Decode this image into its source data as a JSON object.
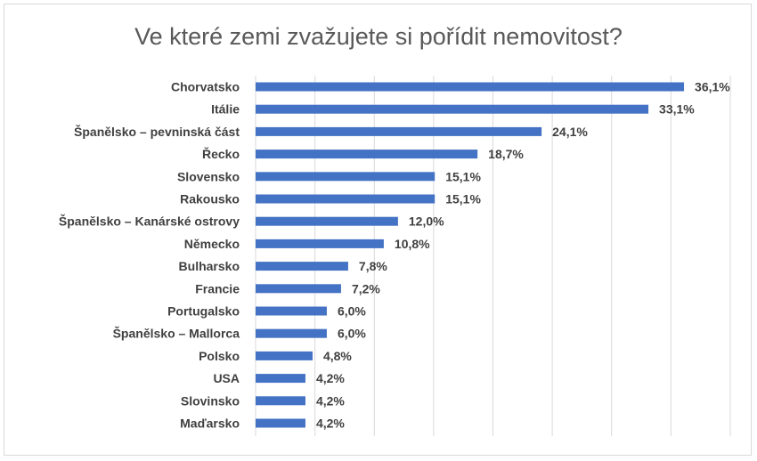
{
  "chart_data": {
    "type": "bar",
    "orientation": "horizontal",
    "title": "Ve které zemi zvažujete si pořídit nemovitost?",
    "categories": [
      "Chorvatsko",
      "Itálie",
      "Španělsko – pevninská část",
      "Řecko",
      "Slovensko",
      "Rakousko",
      "Španělsko – Kanárské ostrovy",
      "Německo",
      "Bulharsko",
      "Francie",
      "Portugalsko",
      "Španělsko – Mallorca",
      "Polsko",
      "USA",
      "Slovinsko",
      "Maďarsko"
    ],
    "values": [
      36.1,
      33.1,
      24.1,
      18.7,
      15.1,
      15.1,
      12.0,
      10.8,
      7.8,
      7.2,
      6.0,
      6.0,
      4.8,
      4.2,
      4.2,
      4.2
    ],
    "value_labels": [
      "36,1%",
      "33,1%",
      "24,1%",
      "18,7%",
      "15,1%",
      "15,1%",
      "12,0%",
      "10,8%",
      "7,8%",
      "7,2%",
      "6,0%",
      "6,0%",
      "4,8%",
      "4,2%",
      "4,2%",
      "4,2%"
    ],
    "xlim": [
      0,
      40
    ],
    "gridlines": true,
    "x_axis_labels_shown": false,
    "legend": "none",
    "bar_color": "#4472c4",
    "gridline_color": "#d9d9d9"
  }
}
